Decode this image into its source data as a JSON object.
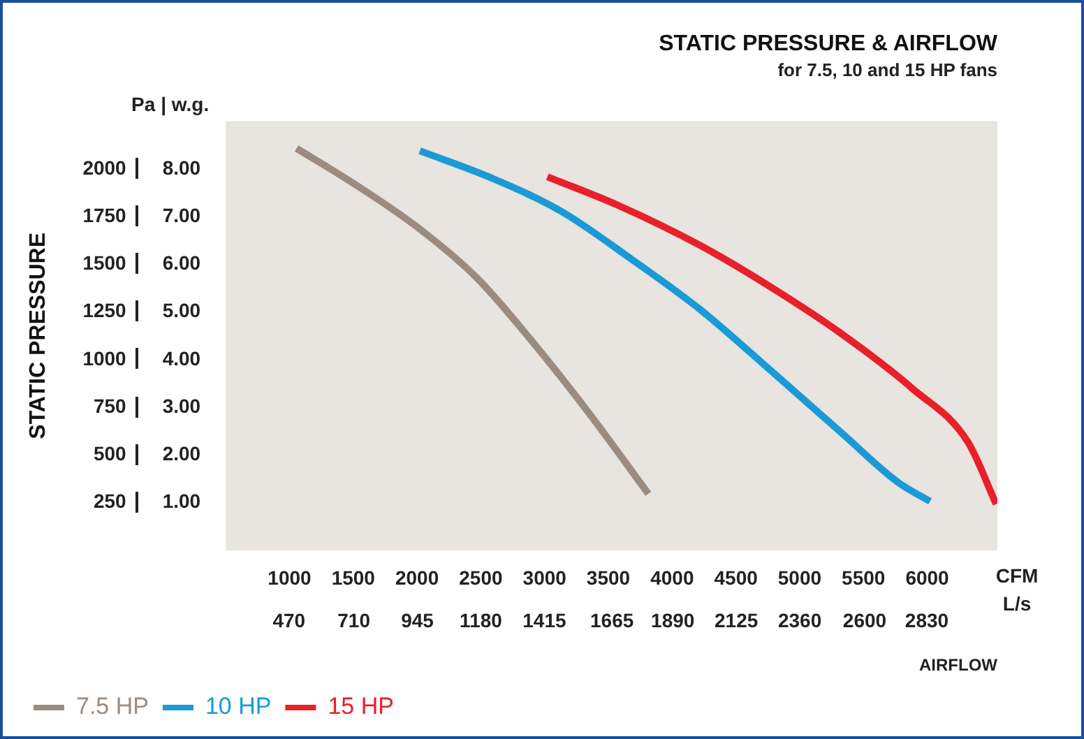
{
  "chart_data": {
    "type": "line",
    "title": "STATIC PRESSURE & AIRFLOW",
    "subtitle": "for 7.5, 10 and 15 HP fans",
    "xlabel": "AIRFLOW",
    "ylabel": "STATIC PRESSURE",
    "annotations": [
      "Pa | w.g.",
      "CFM\nL/s"
    ],
    "xlim": [
      500,
      6550
    ],
    "ylim": [
      0,
      2250
    ],
    "xticks": [
      1000,
      1500,
      2000,
      2500,
      3000,
      3500,
      4000,
      4500,
      5000,
      5500,
      6000
    ],
    "x2lim": [
      236,
      3091
    ],
    "x2ticks": [
      470,
      710,
      945,
      1180,
      1415,
      1665,
      1890,
      2125,
      2360,
      2600,
      2830
    ],
    "yticks": [
      250,
      500,
      750,
      1000,
      1250,
      1500,
      1750,
      2000
    ],
    "y2lim": [
      0,
      9
    ],
    "y2ticks": [
      {
        "value": 1,
        "label": "1.00"
      },
      {
        "value": 2,
        "label": "2.00"
      },
      {
        "value": 3,
        "label": "3.00"
      },
      {
        "value": 4,
        "label": "4.00"
      },
      {
        "value": 5,
        "label": "5.00"
      },
      {
        "value": 6,
        "label": "6.00"
      },
      {
        "value": 7,
        "label": "7.00"
      },
      {
        "value": 8,
        "label": "8.00"
      }
    ],
    "grid": false,
    "legend": "bottom left",
    "marker": "none",
    "line_style": "solid",
    "series": [
      {
        "name": "7.5 HP",
        "color": "#9c8c80",
        "x": [
          1055,
          1484,
          2000,
          2473,
          2912,
          3352,
          3813
        ],
        "values": [
          2108,
          1932,
          1696,
          1426,
          1088,
          716,
          297
        ]
      },
      {
        "name": "10 HP",
        "color": "#1a9ad6",
        "x": [
          2022,
          2582,
          3132,
          3681,
          4231,
          4780,
          5330,
          5769,
          6022
        ],
        "values": [
          2095,
          1953,
          1777,
          1527,
          1257,
          939,
          615,
          358,
          257
        ]
      },
      {
        "name": "15 HP",
        "color": "#e8202a",
        "x": [
          3022,
          3571,
          4231,
          4780,
          5330,
          5879,
          6319,
          6540
        ],
        "values": [
          1959,
          1811,
          1595,
          1378,
          1135,
          851,
          568,
          243
        ]
      }
    ]
  }
}
